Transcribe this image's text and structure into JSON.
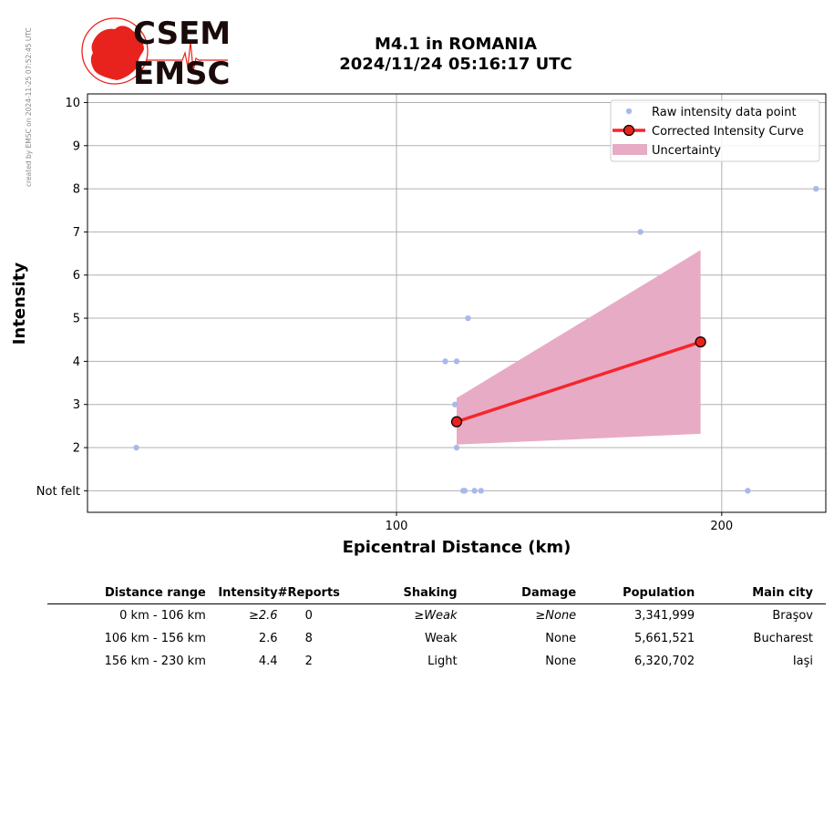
{
  "logo": {
    "line1": "CSEM",
    "line2": "EMSC",
    "globe_color": "#e8231d",
    "text_color": "#1a0a0a"
  },
  "credit": "created by EMSC on 2024-11-25 07:52:45 UTC",
  "title": {
    "line1": "M4.1 in ROMANIA",
    "line2": "2024/11/24 05:16:17 UTC"
  },
  "chart_data": {
    "type": "scatter",
    "xlabel": "Epicentral Distance (km)",
    "ylabel": "Intensity",
    "xlim": [
      5,
      232
    ],
    "ylim": [
      0.5,
      10.2
    ],
    "x_ticks": [
      100,
      200
    ],
    "y_ticks": [
      1,
      2,
      3,
      4,
      5,
      6,
      7,
      8,
      9,
      10
    ],
    "y_tick_labels": [
      "Not felt",
      "2",
      "3",
      "4",
      "5",
      "6",
      "7",
      "8",
      "9",
      "10"
    ],
    "grid": true,
    "legend_position": "top-right",
    "legend": [
      "Raw intensity data point",
      "Corrected Intensity Curve",
      "Uncertainty"
    ],
    "colors": {
      "raw": "#aab9ea",
      "curve": "#f5262b",
      "marker": "#e8231d",
      "uncertainty": "#e8abc5",
      "grid": "#b0b0b0"
    },
    "raw_points": [
      {
        "x": 20,
        "y": 2
      },
      {
        "x": 120.5,
        "y": 1
      },
      {
        "x": 121,
        "y": 1
      },
      {
        "x": 124,
        "y": 1
      },
      {
        "x": 126,
        "y": 1
      },
      {
        "x": 208,
        "y": 1
      },
      {
        "x": 118.5,
        "y": 2
      },
      {
        "x": 118,
        "y": 3
      },
      {
        "x": 115,
        "y": 4
      },
      {
        "x": 118.5,
        "y": 4
      },
      {
        "x": 122,
        "y": 5
      },
      {
        "x": 175,
        "y": 7
      },
      {
        "x": 229,
        "y": 8
      }
    ],
    "curve": [
      {
        "x": 118.5,
        "y": 2.6
      },
      {
        "x": 193.5,
        "y": 4.45
      }
    ],
    "uncertainty": [
      {
        "x": 118.5,
        "lower": 2.07,
        "upper": 3.15
      },
      {
        "x": 193.5,
        "lower": 2.32,
        "upper": 6.58
      }
    ]
  },
  "table": {
    "headers": [
      "Distance range",
      "Intensity",
      "#Reports",
      "Shaking",
      "Damage",
      "Population",
      "Main city"
    ],
    "rows": [
      [
        "0 km -  106 km",
        "≥2.6",
        "0",
        "≥Weak",
        "≥None",
        "3,341,999",
        "Braşov"
      ],
      [
        "106 km -  156 km",
        "2.6",
        "8",
        "Weak",
        "None",
        "5,661,521",
        "Bucharest"
      ],
      [
        "156 km -  230 km",
        "4.4",
        "2",
        "Light",
        "None",
        "6,320,702",
        "Iaşi"
      ]
    ]
  }
}
